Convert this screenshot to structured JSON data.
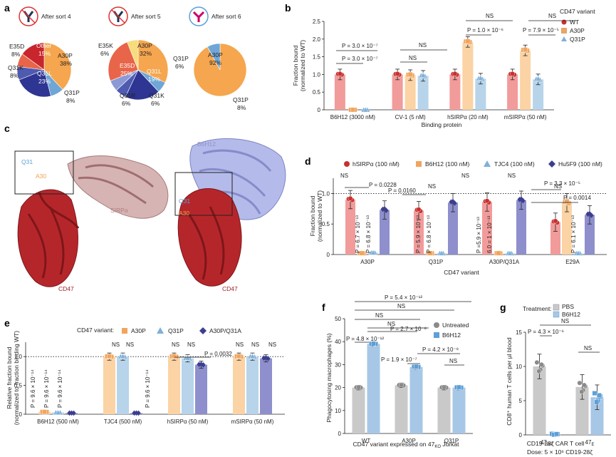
{
  "colors": {
    "wt": "#f29b9b",
    "wt_dot": "#c8302e",
    "a30p": "#fbd3a4",
    "a30p_dot": "#f0a55e",
    "q31p": "#b7d4ea",
    "q31p_dot": "#7fb0d8",
    "purple": "#8e8fcc",
    "purple_dot": "#3c3f8f",
    "gray": "#c9c9c9",
    "gray_dot": "#8a8a8a",
    "blue": "#a7c7e6",
    "blue_dot": "#5d9fd6",
    "cd47": "#b5262b",
    "sirpa": "#c29292",
    "b6h12": "#a7aee0"
  },
  "panels": {
    "a": "a",
    "b": "b",
    "c": "c",
    "d": "d",
    "e": "e",
    "f": "f",
    "g": "g"
  },
  "chart_data": [
    {
      "id": "a",
      "type": "pie",
      "pies": [
        {
          "title": "After sort 4",
          "slices": [
            {
              "label": "A30P",
              "value": 38,
              "color": "#f5a64e"
            },
            {
              "label": "Q31P",
              "value": 8,
              "color": "#6fa6d6"
            },
            {
              "label": "Q31L",
              "value": 23,
              "color": "#2e3592"
            },
            {
              "label": "Q31K",
              "value": 8,
              "color": "#4e5bb1"
            },
            {
              "label": "E35D",
              "value": 8,
              "color": "#e8654a"
            },
            {
              "label": "Other",
              "value": 15,
              "color": "#c8262c"
            }
          ]
        },
        {
          "title": "After sort 5",
          "slices": [
            {
              "label": "A30P",
              "value": 32,
              "color": "#f5a64e"
            },
            {
              "label": "Q31P",
              "value": 6,
              "color": "#6fa6d6"
            },
            {
              "label": "Q31L",
              "value": 19,
              "color": "#2e3592"
            },
            {
              "label": "Q31K",
              "value": 6,
              "color": "#4e5bb1"
            },
            {
              "label": "Q31R",
              "value": 6,
              "color": "#8b9ad4"
            },
            {
              "label": "E35D",
              "value": 25,
              "color": "#e8654a"
            },
            {
              "label": "E35K",
              "value": 6,
              "color": "#f6dc7c"
            }
          ]
        },
        {
          "title": "After sort 6",
          "slices": [
            {
              "label": "A30P",
              "value": 92,
              "color": "#f5a64e"
            },
            {
              "label": "Q31P",
              "value": 8,
              "color": "#6fa6d6"
            }
          ]
        }
      ],
      "labels": {
        "p1": {
          "a30p": "A30P",
          "a30p_v": "38%",
          "q31p": "Q31P",
          "q31p_v": "8%",
          "q31l": "Q31L",
          "q31l_v": "23%",
          "q31k": "Q31K",
          "q31k_v": "8%",
          "e35d": "E35D",
          "e35d_v": "8%",
          "other": "Other",
          "other_v": "15%"
        },
        "p2": {
          "a30p": "A30P",
          "a30p_v": "32%",
          "q31p": "Q31P",
          "q31p_v": "6%",
          "q31l": "Q31L",
          "q31l_v": "19%",
          "q31k": "Q31K",
          "q31k_v": "6%",
          "q31r": "Q31R",
          "q31r_v": "6%",
          "e35d": "E35D",
          "e35d_v": "25%",
          "e35k": "E35K",
          "e35k_v": "6%"
        },
        "p3": {
          "a30p": "A30P",
          "a30p_v": "92%",
          "q31p": "Q31P",
          "q31p_v": "8%"
        }
      }
    },
    {
      "id": "b",
      "type": "bar",
      "ylabel": "Fraction bound",
      "ylabel2": "(normalized to WT)",
      "xlabel": "Binding protein",
      "ylim": [
        0,
        2.5
      ],
      "yticks": [
        "0",
        "0.5",
        "1.0",
        "1.5",
        "2.0",
        "2.5"
      ],
      "categories": [
        "B6H12 (3000 nM)",
        "CV-1 (5 nM)",
        "hSIRPα (20 nM)",
        "mSIRPα (50 nM)"
      ],
      "series": [
        {
          "name": "WT",
          "values": [
            1.0,
            1.0,
            1.0,
            1.0
          ]
        },
        {
          "name": "A30P",
          "values": [
            0.0,
            0.98,
            1.92,
            1.68
          ]
        },
        {
          "name": "Q31P",
          "values": [
            0.0,
            0.96,
            0.88,
            0.86
          ]
        }
      ],
      "legend_title": "CD47 variant",
      "annotations": {
        "p1": "P = 3.0 × 10⁻⁷",
        "p2": "P = 3.0 × 10⁻⁷",
        "ns1": "NS",
        "ns2": "NS",
        "ns3": "NS",
        "p3": "P = 1.0 × 10⁻⁶",
        "ns4": "NS",
        "p4": "P = 7.9 × 10⁻⁵"
      }
    },
    {
      "id": "c",
      "type": "structure",
      "labels": {
        "q31": "Q31",
        "a30": "A30",
        "sirpa": "SIRPα",
        "cd47": "CD47",
        "b6h12": "B6H12",
        "q31b": "Q31",
        "a30b": "A30",
        "cd47b": "CD47"
      }
    },
    {
      "id": "d",
      "type": "bar",
      "ylabel": "Fraction bound",
      "ylabel2": "(normalized to WT)",
      "xlabel": "CD47 variant",
      "ylim": [
        0,
        1.25
      ],
      "yticks": [
        "0",
        "0.5",
        "1.0"
      ],
      "categories": [
        "A30P",
        "Q31P",
        "A30P/Q31A",
        "E29A"
      ],
      "series": [
        {
          "name": "hSIRPα (100 nM)",
          "values": [
            0.9,
            0.72,
            0.86,
            0.53
          ]
        },
        {
          "name": "B6H12 (100 nM)",
          "values": [
            0.02,
            0.02,
            0.02,
            0.85
          ]
        },
        {
          "name": "TJC4 (100 nM)",
          "values": [
            0.03,
            0.02,
            0.02,
            0.02
          ]
        },
        {
          "name": "Hu5F9 (100 nM)",
          "values": [
            0.73,
            0.85,
            0.89,
            0.65
          ]
        }
      ],
      "annotations": {
        "ns1": "NS",
        "ns2": "NS",
        "ns3": "NS",
        "ns4": "NS",
        "ns5": "NS",
        "p1": "P = 0.0228",
        "p2": "P = 0.0160",
        "p3": "P = 3.3 × 10⁻⁵",
        "p4": "P = 0.0014",
        "v1": "P = 6.7 × 10⁻¹³",
        "v2": "P = 6.8 × 10⁻¹³",
        "v3": "P = 5.9 × 10⁻¹³",
        "v4": "P = 6.8 × 10⁻¹³",
        "v5": "P =5.9 × 10⁻¹³",
        "v6": "6.0 = 1 × 10⁻¹³",
        "v7": "P = 6.1 × 10⁻¹³"
      }
    },
    {
      "id": "e",
      "type": "bar",
      "ylabel": "Relative fraction bound",
      "ylabel2": "(normalized to fraction binding WT)",
      "ylim": [
        0,
        1.25
      ],
      "yticks": [
        "0",
        "0.5",
        "1.0"
      ],
      "categories": [
        "B6H12 (500 nM)",
        "TJC4 (500 nM)",
        "hSIRPα (50 nM)",
        "mSIRPα (50 nM)"
      ],
      "series": [
        {
          "name": "A30P",
          "values": [
            0.04,
            1.0,
            1.0,
            1.0
          ]
        },
        {
          "name": "Q31P",
          "values": [
            0.03,
            1.0,
            0.97,
            1.0
          ]
        },
        {
          "name": "A30P/Q31A",
          "values": [
            0.02,
            0.02,
            0.86,
            0.97
          ]
        }
      ],
      "legend_title": "CD47 variant:",
      "annotations": {
        "v1": "P = 9.6 × 10⁻¹⁴",
        "v2": "P = 9.6 × 10⁻¹⁴",
        "v3": "P = 9.6 × 10⁻¹⁴",
        "v4": "P = 9.6 × 10⁻¹⁴",
        "ns1": "NS",
        "ns2": "NS",
        "ns3": "NS",
        "ns4": "NS",
        "ns5": "NS",
        "ns6": "NS",
        "ns7": "NS",
        "p1": "P = 0.0032"
      }
    },
    {
      "id": "f",
      "type": "bar",
      "ylabel": "Phagocytosing macrophages (%)",
      "xlabel": "CD47 variant expressed on 47",
      "xlabel_sub": "KO",
      "xlabel_end": " Jurkat",
      "ylim": [
        0,
        50
      ],
      "yticks": [
        "0",
        "10",
        "20",
        "30",
        "40",
        "50"
      ],
      "categories": [
        "WT",
        "A30P",
        "Q31P"
      ],
      "series": [
        {
          "name": "Untreated",
          "values": [
            20,
            21,
            20
          ]
        },
        {
          "name": "B6H12",
          "values": [
            39,
            29,
            20
          ]
        }
      ],
      "annotations": {
        "p1": "P = 5.4 × 10⁻¹²",
        "ns1": "NS",
        "ns2": "NS",
        "ns3": "NS",
        "p2": "P = 4.8 × 10⁻¹²",
        "p3": "P = 2.7 × 10⁻⁸",
        "p4": "P = 1.9 × 10⁻⁷",
        "p5": "P = 4.2 × 10⁻⁸",
        "ns4": "NS"
      }
    },
    {
      "id": "g",
      "type": "bar",
      "ylabel": "CD8⁺ human T cells per µl blood",
      "ylim": [
        0,
        15
      ],
      "yticks": [
        "0",
        "5",
        "10",
        "15"
      ],
      "categories": [
        "47",
        "47"
      ],
      "cat_subs": [
        "WT",
        "E"
      ],
      "series": [
        {
          "name": "PBS",
          "values": [
            10,
            7
          ]
        },
        {
          "name": "B6H12",
          "values": [
            0.1,
            5.5
          ]
        }
      ],
      "legend_title": "Treatment:",
      "xlabel": "CD19-28ζ CAR T cell",
      "xlabel2": "Dose: 5 × 10⁶ CD19-28ζ",
      "annotations": {
        "p1": "P = 4.3 × 10⁻⁶",
        "ns1": "NS",
        "ns2": "NS"
      }
    }
  ]
}
